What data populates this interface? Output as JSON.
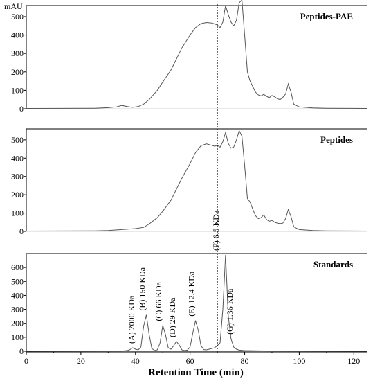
{
  "chart_data": {
    "type": "line",
    "y_unit": "mAU",
    "xlabel": "Retention Time (min)",
    "xlim": [
      0,
      125
    ],
    "x_ticks": [
      0,
      20,
      40,
      60,
      80,
      100,
      120
    ],
    "reference_line_x": 70,
    "grid": false,
    "panels": [
      {
        "title": "Peptides-PAE",
        "ylim": [
          0,
          560
        ],
        "y_ticks": [
          0,
          100,
          200,
          300,
          400,
          500
        ],
        "series": [
          {
            "x": [
              0,
              25,
              30,
              33,
              35,
              37,
              39,
              41,
              43,
              45,
              48,
              50,
              53,
              55,
              57,
              60,
              62,
              64,
              66,
              68,
              69,
              70,
              71,
              72,
              73,
              74,
              75,
              76,
              77,
              78,
              79,
              80,
              81,
              82,
              83,
              84,
              85,
              86,
              87,
              88,
              89,
              90,
              91,
              92,
              93,
              94,
              95,
              96,
              97,
              98,
              100,
              105,
              110,
              125
            ],
            "y": [
              2,
              3,
              6,
              10,
              18,
              12,
              8,
              12,
              25,
              50,
              100,
              145,
              210,
              270,
              330,
              400,
              440,
              462,
              468,
              465,
              460,
              455,
              440,
              470,
              560,
              510,
              470,
              450,
              480,
              575,
              590,
              400,
              200,
              150,
              120,
              90,
              75,
              70,
              78,
              68,
              60,
              72,
              65,
              55,
              50,
              62,
              80,
              135,
              90,
              25,
              10,
              5,
              3,
              2
            ]
          }
        ]
      },
      {
        "title": "Peptides",
        "ylim": [
          0,
          560
        ],
        "y_ticks": [
          0,
          100,
          200,
          300,
          400,
          500
        ],
        "series": [
          {
            "x": [
              0,
              25,
              30,
              35,
              40,
              43,
              45,
              48,
              50,
              53,
              55,
              57,
              60,
              62,
              64,
              66,
              68,
              69,
              70,
              71,
              72,
              73,
              74,
              75,
              76,
              77,
              78,
              79,
              80,
              81,
              82,
              83,
              84,
              85,
              86,
              87,
              88,
              89,
              90,
              91,
              92,
              93,
              94,
              95,
              96,
              97,
              98,
              100,
              105,
              110,
              125
            ],
            "y": [
              2,
              3,
              5,
              10,
              15,
              22,
              40,
              75,
              110,
              170,
              230,
              290,
              370,
              430,
              468,
              478,
              470,
              465,
              470,
              460,
              490,
              540,
              480,
              455,
              460,
              500,
              550,
              520,
              360,
              180,
              160,
              120,
              85,
              70,
              75,
              90,
              65,
              55,
              60,
              50,
              45,
              42,
              45,
              70,
              120,
              80,
              25,
              10,
              5,
              3,
              2
            ]
          }
        ]
      },
      {
        "title": "Standards",
        "ylim": [
          0,
          700
        ],
        "y_ticks": [
          0,
          100,
          200,
          300,
          400,
          500,
          600
        ],
        "series": [
          {
            "x": [
              0,
              35,
              37,
              38,
              39,
              40,
              41,
              42,
              43,
              44,
              45,
              46,
              47,
              48,
              49,
              50,
              51,
              52,
              53,
              54,
              55,
              56,
              57,
              58,
              59,
              60,
              61,
              62,
              63,
              64,
              65,
              66,
              67,
              68,
              69,
              70,
              71,
              72,
              73,
              74,
              75,
              76,
              77,
              78,
              80,
              85,
              90,
              100,
              125
            ],
            "y": [
              0,
              2,
              5,
              12,
              25,
              15,
              10,
              30,
              180,
              260,
              120,
              20,
              5,
              10,
              60,
              185,
              120,
              25,
              15,
              40,
              70,
              45,
              10,
              5,
              8,
              30,
              130,
              220,
              150,
              40,
              12,
              10,
              15,
              20,
              25,
              40,
              60,
              300,
              690,
              250,
              90,
              30,
              15,
              8,
              5,
              3,
              2,
              1,
              0
            ]
          }
        ],
        "annotations": [
          {
            "text": "(A) 2000 KDa",
            "x": 39.5,
            "y": 25
          },
          {
            "text": "(B) 150 KDa",
            "x": 43.5,
            "y": 260
          },
          {
            "text": "(C) 66 KDa",
            "x": 49.5,
            "y": 185
          },
          {
            "text": "(D) 29 KDa",
            "x": 54.5,
            "y": 70
          },
          {
            "text": "(E) 12.4 KDa",
            "x": 61.5,
            "y": 220
          },
          {
            "text": "(F) 6.5 KDa",
            "x": 70.5,
            "y": 690
          },
          {
            "text": "(G) 1.36 KDa",
            "x": 75.5,
            "y": 90
          }
        ]
      }
    ]
  }
}
